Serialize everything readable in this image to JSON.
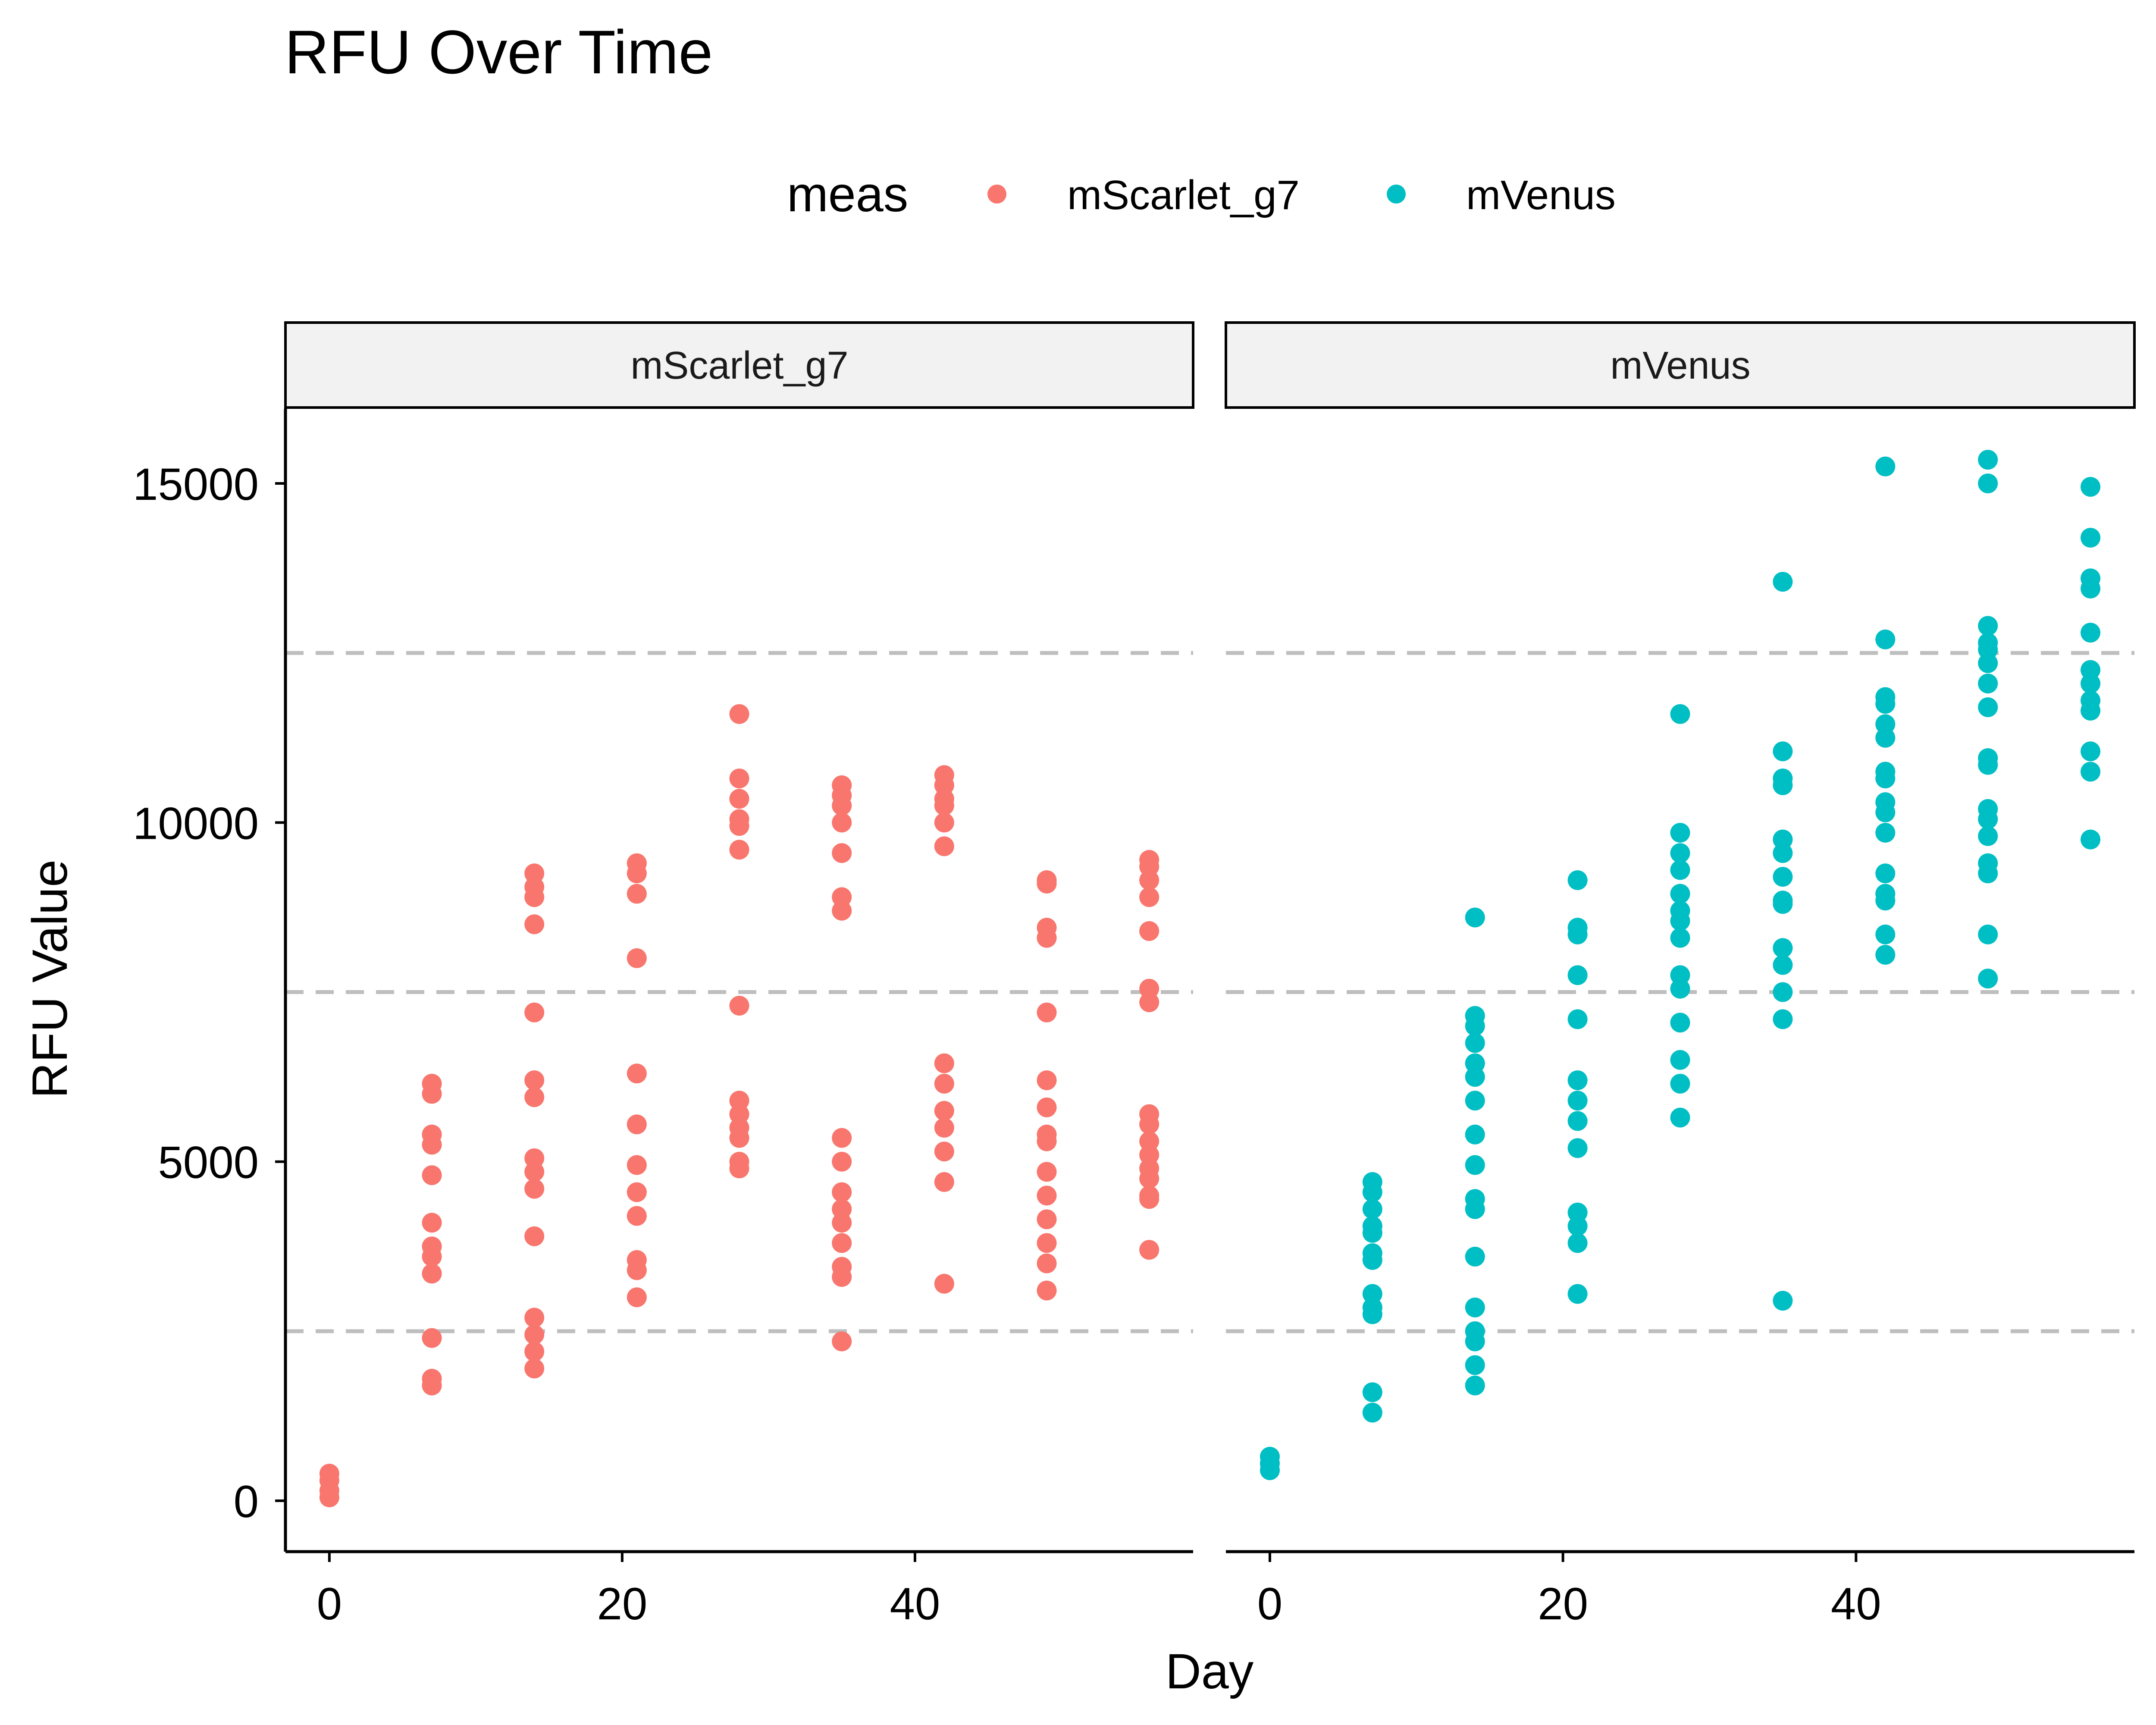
{
  "chart_data": {
    "type": "scatter",
    "title": "RFU Over Time",
    "xlabel": "Day",
    "ylabel": "RFU Value",
    "xlim": [
      -3,
      59
    ],
    "ylim": [
      -750,
      16100
    ],
    "x_ticks": [
      0,
      20,
      40
    ],
    "y_ticks": [
      0,
      5000,
      10000,
      15000
    ],
    "reference_lines": [
      2500,
      7500,
      12500
    ],
    "legend": {
      "title": "meas",
      "position": "top",
      "entries": [
        {
          "label": "mScarlet_g7",
          "color": "#F8766D"
        },
        {
          "label": "mVenus",
          "color": "#00BFC4"
        }
      ]
    },
    "facets": [
      {
        "label": "mScarlet_g7",
        "color": "#F8766D",
        "points": [
          {
            "x": 0,
            "y": 400
          },
          {
            "x": 0,
            "y": 300
          },
          {
            "x": 0,
            "y": 150
          },
          {
            "x": 0,
            "y": 50
          },
          {
            "x": 7,
            "y": 6150
          },
          {
            "x": 7,
            "y": 6000
          },
          {
            "x": 7,
            "y": 5400
          },
          {
            "x": 7,
            "y": 5250
          },
          {
            "x": 7,
            "y": 4800
          },
          {
            "x": 7,
            "y": 4100
          },
          {
            "x": 7,
            "y": 3750
          },
          {
            "x": 7,
            "y": 3600
          },
          {
            "x": 7,
            "y": 3350
          },
          {
            "x": 7,
            "y": 2400
          },
          {
            "x": 7,
            "y": 1800
          },
          {
            "x": 7,
            "y": 1700
          },
          {
            "x": 14,
            "y": 9250
          },
          {
            "x": 14,
            "y": 9050
          },
          {
            "x": 14,
            "y": 8900
          },
          {
            "x": 14,
            "y": 8500
          },
          {
            "x": 14,
            "y": 7200
          },
          {
            "x": 14,
            "y": 6200
          },
          {
            "x": 14,
            "y": 5950
          },
          {
            "x": 14,
            "y": 5050
          },
          {
            "x": 14,
            "y": 4850
          },
          {
            "x": 14,
            "y": 4600
          },
          {
            "x": 14,
            "y": 3900
          },
          {
            "x": 14,
            "y": 2700
          },
          {
            "x": 14,
            "y": 2450
          },
          {
            "x": 14,
            "y": 2200
          },
          {
            "x": 14,
            "y": 1950
          },
          {
            "x": 21,
            "y": 9400
          },
          {
            "x": 21,
            "y": 9250
          },
          {
            "x": 21,
            "y": 8950
          },
          {
            "x": 21,
            "y": 8000
          },
          {
            "x": 21,
            "y": 6300
          },
          {
            "x": 21,
            "y": 5550
          },
          {
            "x": 21,
            "y": 4950
          },
          {
            "x": 21,
            "y": 4550
          },
          {
            "x": 21,
            "y": 4200
          },
          {
            "x": 21,
            "y": 3550
          },
          {
            "x": 21,
            "y": 3400
          },
          {
            "x": 21,
            "y": 3000
          },
          {
            "x": 28,
            "y": 11600
          },
          {
            "x": 28,
            "y": 10650
          },
          {
            "x": 28,
            "y": 10350
          },
          {
            "x": 28,
            "y": 10050
          },
          {
            "x": 28,
            "y": 9950
          },
          {
            "x": 28,
            "y": 9600
          },
          {
            "x": 28,
            "y": 7300
          },
          {
            "x": 28,
            "y": 5900
          },
          {
            "x": 28,
            "y": 5700
          },
          {
            "x": 28,
            "y": 5500
          },
          {
            "x": 28,
            "y": 5350
          },
          {
            "x": 28,
            "y": 5000
          },
          {
            "x": 28,
            "y": 4900
          },
          {
            "x": 35,
            "y": 10550
          },
          {
            "x": 35,
            "y": 10400
          },
          {
            "x": 35,
            "y": 10250
          },
          {
            "x": 35,
            "y": 10000
          },
          {
            "x": 35,
            "y": 9550
          },
          {
            "x": 35,
            "y": 8900
          },
          {
            "x": 35,
            "y": 8700
          },
          {
            "x": 35,
            "y": 5350
          },
          {
            "x": 35,
            "y": 5000
          },
          {
            "x": 35,
            "y": 4550
          },
          {
            "x": 35,
            "y": 4300
          },
          {
            "x": 35,
            "y": 4100
          },
          {
            "x": 35,
            "y": 3800
          },
          {
            "x": 35,
            "y": 3450
          },
          {
            "x": 35,
            "y": 3300
          },
          {
            "x": 35,
            "y": 2350
          },
          {
            "x": 42,
            "y": 10700
          },
          {
            "x": 42,
            "y": 10550
          },
          {
            "x": 42,
            "y": 10350
          },
          {
            "x": 42,
            "y": 10250
          },
          {
            "x": 42,
            "y": 10000
          },
          {
            "x": 42,
            "y": 9650
          },
          {
            "x": 42,
            "y": 6450
          },
          {
            "x": 42,
            "y": 6150
          },
          {
            "x": 42,
            "y": 5750
          },
          {
            "x": 42,
            "y": 5500
          },
          {
            "x": 42,
            "y": 5150
          },
          {
            "x": 42,
            "y": 4700
          },
          {
            "x": 42,
            "y": 3200
          },
          {
            "x": 49,
            "y": 9150
          },
          {
            "x": 49,
            "y": 9100
          },
          {
            "x": 49,
            "y": 8450
          },
          {
            "x": 49,
            "y": 8300
          },
          {
            "x": 49,
            "y": 7200
          },
          {
            "x": 49,
            "y": 6200
          },
          {
            "x": 49,
            "y": 5800
          },
          {
            "x": 49,
            "y": 5400
          },
          {
            "x": 49,
            "y": 5300
          },
          {
            "x": 49,
            "y": 4850
          },
          {
            "x": 49,
            "y": 4500
          },
          {
            "x": 49,
            "y": 4150
          },
          {
            "x": 49,
            "y": 3800
          },
          {
            "x": 49,
            "y": 3500
          },
          {
            "x": 49,
            "y": 3100
          },
          {
            "x": 56,
            "y": 9450
          },
          {
            "x": 56,
            "y": 9350
          },
          {
            "x": 56,
            "y": 9150
          },
          {
            "x": 56,
            "y": 8900
          },
          {
            "x": 56,
            "y": 8400
          },
          {
            "x": 56,
            "y": 7550
          },
          {
            "x": 56,
            "y": 7350
          },
          {
            "x": 56,
            "y": 5700
          },
          {
            "x": 56,
            "y": 5550
          },
          {
            "x": 56,
            "y": 5300
          },
          {
            "x": 56,
            "y": 5100
          },
          {
            "x": 56,
            "y": 4900
          },
          {
            "x": 56,
            "y": 4750
          },
          {
            "x": 56,
            "y": 4500
          },
          {
            "x": 56,
            "y": 4450
          },
          {
            "x": 56,
            "y": 3700
          }
        ]
      },
      {
        "label": "mVenus",
        "color": "#00BFC4",
        "points": [
          {
            "x": 0,
            "y": 650
          },
          {
            "x": 0,
            "y": 550
          },
          {
            "x": 0,
            "y": 450
          },
          {
            "x": 7,
            "y": 4700
          },
          {
            "x": 7,
            "y": 4550
          },
          {
            "x": 7,
            "y": 4300
          },
          {
            "x": 7,
            "y": 4050
          },
          {
            "x": 7,
            "y": 3950
          },
          {
            "x": 7,
            "y": 3650
          },
          {
            "x": 7,
            "y": 3550
          },
          {
            "x": 7,
            "y": 3050
          },
          {
            "x": 7,
            "y": 2850
          },
          {
            "x": 7,
            "y": 2750
          },
          {
            "x": 7,
            "y": 1600
          },
          {
            "x": 7,
            "y": 1300
          },
          {
            "x": 14,
            "y": 8600
          },
          {
            "x": 14,
            "y": 7150
          },
          {
            "x": 14,
            "y": 7000
          },
          {
            "x": 14,
            "y": 6750
          },
          {
            "x": 14,
            "y": 6450
          },
          {
            "x": 14,
            "y": 6250
          },
          {
            "x": 14,
            "y": 5900
          },
          {
            "x": 14,
            "y": 5400
          },
          {
            "x": 14,
            "y": 4950
          },
          {
            "x": 14,
            "y": 4450
          },
          {
            "x": 14,
            "y": 4300
          },
          {
            "x": 14,
            "y": 3600
          },
          {
            "x": 14,
            "y": 2850
          },
          {
            "x": 14,
            "y": 2500
          },
          {
            "x": 14,
            "y": 2350
          },
          {
            "x": 14,
            "y": 2000
          },
          {
            "x": 14,
            "y": 1700
          },
          {
            "x": 21,
            "y": 9150
          },
          {
            "x": 21,
            "y": 8450
          },
          {
            "x": 21,
            "y": 8350
          },
          {
            "x": 21,
            "y": 7750
          },
          {
            "x": 21,
            "y": 7100
          },
          {
            "x": 21,
            "y": 6200
          },
          {
            "x": 21,
            "y": 5900
          },
          {
            "x": 21,
            "y": 5600
          },
          {
            "x": 21,
            "y": 5200
          },
          {
            "x": 21,
            "y": 4250
          },
          {
            "x": 21,
            "y": 4050
          },
          {
            "x": 21,
            "y": 3800
          },
          {
            "x": 21,
            "y": 3050
          },
          {
            "x": 28,
            "y": 11600
          },
          {
            "x": 28,
            "y": 9850
          },
          {
            "x": 28,
            "y": 9550
          },
          {
            "x": 28,
            "y": 9300
          },
          {
            "x": 28,
            "y": 8950
          },
          {
            "x": 28,
            "y": 8700
          },
          {
            "x": 28,
            "y": 8550
          },
          {
            "x": 28,
            "y": 8300
          },
          {
            "x": 28,
            "y": 7750
          },
          {
            "x": 28,
            "y": 7550
          },
          {
            "x": 28,
            "y": 7050
          },
          {
            "x": 28,
            "y": 6500
          },
          {
            "x": 28,
            "y": 6150
          },
          {
            "x": 28,
            "y": 5650
          },
          {
            "x": 35,
            "y": 13550
          },
          {
            "x": 35,
            "y": 11050
          },
          {
            "x": 35,
            "y": 10650
          },
          {
            "x": 35,
            "y": 10550
          },
          {
            "x": 35,
            "y": 9750
          },
          {
            "x": 35,
            "y": 9550
          },
          {
            "x": 35,
            "y": 9200
          },
          {
            "x": 35,
            "y": 8850
          },
          {
            "x": 35,
            "y": 8800
          },
          {
            "x": 35,
            "y": 8150
          },
          {
            "x": 35,
            "y": 7900
          },
          {
            "x": 35,
            "y": 7500
          },
          {
            "x": 35,
            "y": 7100
          },
          {
            "x": 35,
            "y": 2950
          },
          {
            "x": 42,
            "y": 15250
          },
          {
            "x": 42,
            "y": 12700
          },
          {
            "x": 42,
            "y": 11850
          },
          {
            "x": 42,
            "y": 11750
          },
          {
            "x": 42,
            "y": 11450
          },
          {
            "x": 42,
            "y": 11250
          },
          {
            "x": 42,
            "y": 10750
          },
          {
            "x": 42,
            "y": 10650
          },
          {
            "x": 42,
            "y": 10300
          },
          {
            "x": 42,
            "y": 10150
          },
          {
            "x": 42,
            "y": 9850
          },
          {
            "x": 42,
            "y": 9250
          },
          {
            "x": 42,
            "y": 8950
          },
          {
            "x": 42,
            "y": 8850
          },
          {
            "x": 42,
            "y": 8350
          },
          {
            "x": 42,
            "y": 8050
          },
          {
            "x": 49,
            "y": 15350
          },
          {
            "x": 49,
            "y": 15000
          },
          {
            "x": 49,
            "y": 12900
          },
          {
            "x": 49,
            "y": 12650
          },
          {
            "x": 49,
            "y": 12550
          },
          {
            "x": 49,
            "y": 12350
          },
          {
            "x": 49,
            "y": 12050
          },
          {
            "x": 49,
            "y": 11700
          },
          {
            "x": 49,
            "y": 10950
          },
          {
            "x": 49,
            "y": 10850
          },
          {
            "x": 49,
            "y": 10200
          },
          {
            "x": 49,
            "y": 10050
          },
          {
            "x": 49,
            "y": 9800
          },
          {
            "x": 49,
            "y": 9400
          },
          {
            "x": 49,
            "y": 9250
          },
          {
            "x": 49,
            "y": 8350
          },
          {
            "x": 49,
            "y": 7700
          },
          {
            "x": 56,
            "y": 14950
          },
          {
            "x": 56,
            "y": 14200
          },
          {
            "x": 56,
            "y": 13600
          },
          {
            "x": 56,
            "y": 13450
          },
          {
            "x": 56,
            "y": 12800
          },
          {
            "x": 56,
            "y": 12250
          },
          {
            "x": 56,
            "y": 12050
          },
          {
            "x": 56,
            "y": 11800
          },
          {
            "x": 56,
            "y": 11650
          },
          {
            "x": 56,
            "y": 11050
          },
          {
            "x": 56,
            "y": 10750
          },
          {
            "x": 56,
            "y": 9750
          }
        ]
      }
    ]
  }
}
